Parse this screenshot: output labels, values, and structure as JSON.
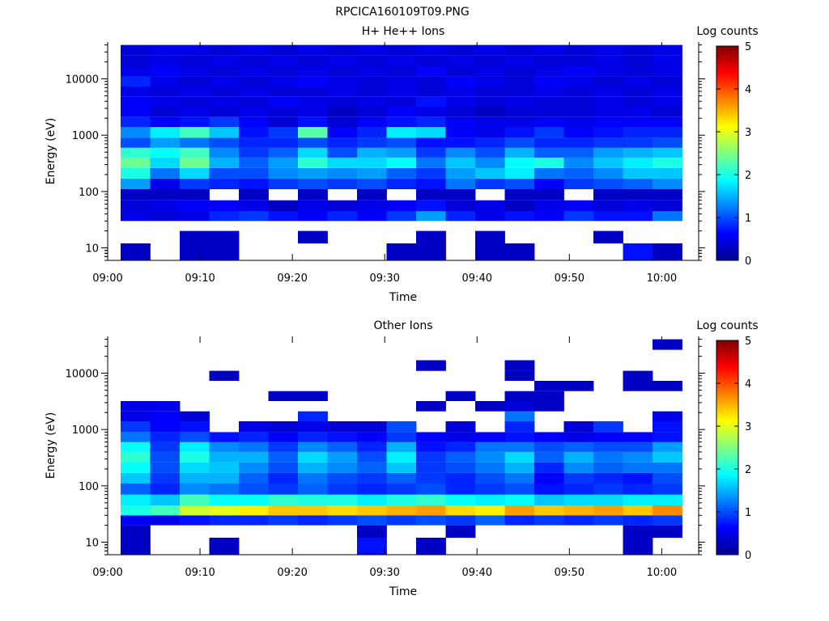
{
  "page_title": "RPCICA160109T09.PNG",
  "colormap": [
    "#00008f",
    "#0000ff",
    "#0080ff",
    "#00ffff",
    "#80ff80",
    "#ffff00",
    "#ff8000",
    "#ff0000",
    "#800000"
  ],
  "chart_data": [
    {
      "type": "heatmap",
      "title": "H+ He++ Ions",
      "xlabel": "Time",
      "ylabel": "Energy (eV)",
      "x_ticks": [
        "09:00",
        "09:10",
        "09:20",
        "09:30",
        "09:40",
        "09:50",
        "10:00"
      ],
      "x_range_min": [
        0,
        64
      ],
      "y_scale": "log",
      "y_range": [
        6,
        45000
      ],
      "y_ticks": [
        {
          "value": 10,
          "label": "10"
        },
        {
          "value": 100,
          "label": "100"
        },
        {
          "value": 1000,
          "label": "1000"
        },
        {
          "value": 10000,
          "label": "10000"
        }
      ],
      "colorbar": {
        "label": "Log counts",
        "min": 0,
        "max": 5,
        "ticks": [
          "0",
          "1",
          "2",
          "3",
          "4",
          "5"
        ]
      },
      "time_bins_start_min": [
        1.4,
        4.6,
        7.8,
        11.0,
        14.2,
        17.4,
        20.6,
        23.8,
        27.0,
        30.2,
        33.4,
        36.6,
        39.8,
        43.0,
        46.2,
        49.4,
        52.6,
        55.8,
        59.0
      ],
      "time_bin_width_min": 3.2,
      "energy_bands_eV": [
        {
          "lo": 6,
          "hi": 12
        },
        {
          "lo": 12,
          "hi": 20
        },
        {
          "lo": 20,
          "hi": 30
        },
        {
          "lo": 30,
          "hi": 45
        },
        {
          "lo": 45,
          "hi": 70
        },
        {
          "lo": 70,
          "hi": 110
        },
        {
          "lo": 110,
          "hi": 170
        },
        {
          "lo": 170,
          "hi": 260
        },
        {
          "lo": 260,
          "hi": 400
        },
        {
          "lo": 400,
          "hi": 600
        },
        {
          "lo": 600,
          "hi": 900
        },
        {
          "lo": 900,
          "hi": 1400
        },
        {
          "lo": 1400,
          "hi": 2100
        },
        {
          "lo": 2100,
          "hi": 3200
        },
        {
          "lo": 3200,
          "hi": 4800
        },
        {
          "lo": 4800,
          "hi": 7300
        },
        {
          "lo": 7300,
          "hi": 11000
        },
        {
          "lo": 11000,
          "hi": 17000
        },
        {
          "lo": 17000,
          "hi": 26000
        },
        {
          "lo": 26000,
          "hi": 40000
        }
      ],
      "log_counts_rows_low_to_high_energy": [
        [
          0.3,
          -1,
          0.3,
          0.3,
          -1,
          -1,
          -1,
          -1,
          -1,
          0.3,
          0.3,
          -1,
          0.3,
          0.3,
          -1,
          -1,
          -1,
          0.7,
          0.3
        ],
        [
          -1,
          -1,
          0.3,
          0.3,
          -1,
          -1,
          0.3,
          -1,
          -1,
          -1,
          0.3,
          -1,
          0.3,
          -1,
          -1,
          -1,
          0.3,
          -1,
          -1
        ],
        [
          -1,
          -1,
          -1,
          -1,
          -1,
          -1,
          -1,
          -1,
          -1,
          -1,
          -1,
          -1,
          -1,
          -1,
          -1,
          -1,
          -1,
          -1,
          -1
        ],
        [
          0.5,
          0.4,
          0.5,
          0.8,
          0.9,
          0.7,
          0.6,
          0.8,
          0.6,
          0.9,
          1.4,
          0.8,
          0.5,
          0.7,
          0.6,
          0.9,
          0.7,
          0.7,
          1.2
        ],
        [
          0.4,
          0.5,
          0.6,
          0.6,
          0.5,
          0.3,
          0.5,
          0.4,
          0.5,
          0.6,
          0.7,
          0.4,
          0.5,
          0.3,
          0.5,
          0.6,
          0.4,
          0.5,
          0.4
        ],
        [
          0.3,
          0.3,
          0.3,
          -1,
          0.3,
          -1,
          0.3,
          -1,
          0.3,
          -1,
          0.3,
          0.3,
          -1,
          0.3,
          0.3,
          -1,
          0.3,
          0.3,
          0.3
        ],
        [
          1.4,
          0.5,
          0.9,
          0.8,
          0.7,
          0.9,
          1.0,
          0.9,
          1.0,
          0.8,
          0.7,
          1.2,
          0.9,
          1.0,
          0.6,
          0.9,
          1.0,
          1.1,
          1.3
        ],
        [
          2.0,
          1.2,
          1.7,
          1.0,
          1.0,
          1.3,
          1.4,
          1.3,
          1.4,
          1.1,
          0.9,
          1.4,
          1.6,
          1.8,
          1.2,
          1.1,
          1.3,
          1.6,
          1.6
        ],
        [
          2.4,
          1.7,
          2.4,
          1.5,
          1.1,
          1.4,
          2.1,
          1.7,
          1.7,
          1.9,
          1.2,
          1.6,
          1.3,
          1.9,
          2.0,
          1.3,
          1.6,
          1.8,
          2.0
        ],
        [
          2.1,
          1.9,
          2.2,
          1.3,
          0.9,
          1.1,
          1.7,
          1.0,
          1.5,
          1.4,
          0.9,
          1.3,
          1.0,
          1.5,
          1.1,
          1.1,
          1.4,
          1.5,
          1.6
        ],
        [
          1.0,
          1.4,
          1.2,
          1.0,
          0.8,
          0.8,
          1.0,
          0.8,
          0.9,
          1.0,
          0.7,
          0.7,
          0.8,
          1.0,
          0.8,
          0.8,
          0.9,
          0.9,
          1.0
        ],
        [
          1.3,
          1.8,
          2.2,
          1.6,
          0.7,
          0.9,
          2.3,
          0.6,
          0.8,
          1.8,
          1.7,
          0.6,
          0.5,
          0.7,
          0.9,
          0.6,
          0.7,
          0.8,
          0.8
        ],
        [
          0.8,
          0.6,
          0.7,
          0.9,
          0.6,
          0.4,
          0.7,
          0.4,
          0.6,
          0.7,
          0.8,
          0.6,
          0.5,
          0.5,
          0.6,
          0.5,
          0.6,
          0.6,
          0.6
        ],
        [
          0.6,
          0.4,
          0.5,
          0.4,
          0.5,
          0.4,
          0.5,
          0.3,
          0.4,
          0.6,
          0.5,
          0.4,
          0.3,
          0.4,
          0.4,
          0.4,
          0.5,
          0.5,
          0.4
        ],
        [
          0.6,
          0.5,
          0.4,
          0.5,
          0.4,
          0.6,
          0.5,
          0.4,
          0.5,
          0.4,
          0.7,
          0.5,
          0.4,
          0.5,
          0.4,
          0.4,
          0.5,
          0.4,
          0.5
        ],
        [
          0.5,
          0.4,
          0.5,
          0.4,
          0.5,
          0.4,
          0.4,
          0.5,
          0.4,
          0.5,
          0.4,
          0.5,
          0.4,
          0.4,
          0.5,
          0.4,
          0.5,
          0.4,
          0.5
        ],
        [
          0.8,
          0.5,
          0.4,
          0.5,
          0.4,
          0.5,
          0.6,
          0.5,
          0.4,
          0.5,
          0.4,
          0.6,
          0.5,
          0.4,
          0.6,
          0.5,
          0.4,
          0.5,
          0.4
        ],
        [
          0.5,
          0.6,
          0.5,
          0.4,
          0.5,
          0.4,
          0.5,
          0.4,
          0.5,
          0.4,
          0.6,
          0.4,
          0.5,
          0.4,
          0.5,
          0.6,
          0.5,
          0.4,
          0.5
        ],
        [
          0.4,
          0.5,
          0.4,
          0.5,
          0.4,
          0.5,
          0.4,
          0.5,
          0.4,
          0.5,
          0.4,
          0.5,
          0.4,
          0.5,
          0.4,
          0.4,
          0.5,
          0.4,
          0.5
        ],
        [
          0.4,
          0.5,
          0.5,
          0.4,
          0.5,
          0.4,
          0.5,
          0.4,
          0.5,
          0.4,
          0.5,
          0.4,
          0.5,
          0.4,
          0.5,
          0.4,
          0.5,
          0.4,
          0.5
        ]
      ]
    },
    {
      "type": "heatmap",
      "title": "Other Ions",
      "xlabel": "Time",
      "ylabel": "Energy (eV)",
      "x_ticks": [
        "09:00",
        "09:10",
        "09:20",
        "09:30",
        "09:40",
        "09:50",
        "10:00"
      ],
      "x_range_min": [
        0,
        64
      ],
      "y_scale": "log",
      "y_range": [
        6,
        45000
      ],
      "y_ticks": [
        {
          "value": 10,
          "label": "10"
        },
        {
          "value": 100,
          "label": "100"
        },
        {
          "value": 1000,
          "label": "1000"
        },
        {
          "value": 10000,
          "label": "10000"
        }
      ],
      "colorbar": {
        "label": "Log counts",
        "min": 0,
        "max": 5,
        "ticks": [
          "0",
          "1",
          "2",
          "3",
          "4",
          "5"
        ]
      },
      "time_bins_start_min": [
        1.4,
        4.6,
        7.8,
        11.0,
        14.2,
        17.4,
        20.6,
        23.8,
        27.0,
        30.2,
        33.4,
        36.6,
        39.8,
        43.0,
        46.2,
        49.4,
        52.6,
        55.8,
        59.0
      ],
      "time_bin_width_min": 3.2,
      "energy_bands_eV": [
        {
          "lo": 6,
          "hi": 12
        },
        {
          "lo": 12,
          "hi": 20
        },
        {
          "lo": 20,
          "hi": 30
        },
        {
          "lo": 30,
          "hi": 45
        },
        {
          "lo": 45,
          "hi": 70
        },
        {
          "lo": 70,
          "hi": 110
        },
        {
          "lo": 110,
          "hi": 170
        },
        {
          "lo": 170,
          "hi": 260
        },
        {
          "lo": 260,
          "hi": 400
        },
        {
          "lo": 400,
          "hi": 600
        },
        {
          "lo": 600,
          "hi": 900
        },
        {
          "lo": 900,
          "hi": 1400
        },
        {
          "lo": 1400,
          "hi": 2100
        },
        {
          "lo": 2100,
          "hi": 3200
        },
        {
          "lo": 3200,
          "hi": 4800
        },
        {
          "lo": 4800,
          "hi": 7300
        },
        {
          "lo": 7300,
          "hi": 11000
        },
        {
          "lo": 11000,
          "hi": 17000
        },
        {
          "lo": 17000,
          "hi": 26000
        },
        {
          "lo": 26000,
          "hi": 40000
        }
      ],
      "log_counts_rows_low_to_high_energy": [
        [
          0.3,
          -1,
          -1,
          0.3,
          -1,
          -1,
          -1,
          -1,
          0.7,
          -1,
          0.3,
          -1,
          -1,
          -1,
          -1,
          -1,
          -1,
          0.3,
          -1
        ],
        [
          0.3,
          -1,
          -1,
          -1,
          -1,
          -1,
          -1,
          -1,
          0.3,
          -1,
          -1,
          0.3,
          -1,
          -1,
          -1,
          -1,
          -1,
          0.3,
          0.3
        ],
        [
          0.6,
          0.5,
          0.7,
          0.8,
          0.8,
          0.9,
          0.8,
          0.9,
          1.0,
          0.9,
          1.0,
          0.9,
          1.1,
          0.8,
          0.9,
          0.8,
          0.9,
          0.8,
          0.9
        ],
        [
          2.0,
          2.2,
          2.9,
          3.0,
          3.2,
          3.4,
          3.4,
          3.3,
          3.4,
          3.5,
          3.6,
          3.3,
          3.2,
          3.6,
          3.4,
          3.5,
          3.6,
          3.4,
          3.7
        ],
        [
          1.8,
          1.6,
          2.2,
          1.9,
          1.9,
          2.1,
          2.0,
          2.0,
          1.8,
          2.0,
          2.1,
          1.9,
          1.8,
          1.9,
          1.6,
          1.7,
          1.7,
          1.8,
          1.8
        ],
        [
          1.1,
          0.8,
          1.3,
          1.2,
          1.0,
          0.9,
          1.1,
          0.9,
          0.8,
          0.9,
          1.0,
          0.8,
          0.9,
          1.0,
          0.7,
          0.8,
          0.9,
          0.8,
          0.9
        ],
        [
          1.6,
          0.9,
          1.5,
          1.5,
          1.1,
          0.8,
          1.2,
          1.0,
          0.9,
          1.1,
          0.9,
          0.8,
          1.0,
          1.2,
          0.6,
          0.9,
          0.8,
          0.7,
          1.0
        ],
        [
          1.9,
          1.0,
          1.7,
          1.6,
          1.3,
          1.0,
          1.5,
          1.3,
          1.1,
          1.6,
          0.9,
          1.0,
          1.2,
          1.5,
          0.8,
          1.3,
          1.1,
          1.2,
          1.2
        ],
        [
          2.1,
          1.0,
          2.0,
          1.5,
          1.5,
          1.1,
          1.7,
          1.4,
          1.0,
          1.8,
          0.9,
          1.1,
          1.3,
          1.7,
          1.1,
          1.5,
          1.2,
          1.3,
          1.6
        ],
        [
          1.9,
          0.9,
          1.8,
          1.3,
          1.2,
          0.9,
          1.3,
          1.1,
          0.8,
          1.5,
          0.7,
          0.8,
          1.2,
          1.2,
          1.0,
          1.1,
          1.0,
          1.0,
          1.4
        ],
        [
          1.2,
          0.8,
          1.0,
          0.7,
          0.8,
          0.6,
          0.8,
          0.7,
          0.6,
          0.9,
          0.6,
          0.5,
          0.6,
          0.7,
          0.6,
          0.5,
          0.6,
          0.6,
          0.7
        ],
        [
          0.9,
          0.6,
          0.7,
          -1,
          0.5,
          0.4,
          0.5,
          0.4,
          0.4,
          1.0,
          -1,
          0.4,
          -1,
          0.8,
          -1,
          0.4,
          0.9,
          -1,
          0.7
        ],
        [
          0.5,
          0.6,
          0.4,
          -1,
          -1,
          -1,
          0.8,
          -1,
          -1,
          -1,
          -1,
          -1,
          -1,
          1.2,
          -1,
          -1,
          -1,
          -1,
          0.5
        ],
        [
          0.5,
          0.5,
          -1,
          -1,
          -1,
          -1,
          -1,
          -1,
          -1,
          -1,
          0.3,
          -1,
          0.3,
          0.4,
          0.3,
          -1,
          -1,
          -1,
          -1
        ],
        [
          -1,
          -1,
          -1,
          -1,
          -1,
          0.3,
          0.3,
          -1,
          -1,
          -1,
          -1,
          0.3,
          -1,
          0.3,
          0.3,
          -1,
          -1,
          -1,
          -1
        ],
        [
          -1,
          -1,
          -1,
          -1,
          -1,
          -1,
          -1,
          -1,
          -1,
          -1,
          -1,
          -1,
          -1,
          -1,
          0.3,
          0.3,
          -1,
          0.3,
          0.3
        ],
        [
          -1,
          -1,
          -1,
          0.3,
          -1,
          -1,
          -1,
          -1,
          -1,
          -1,
          -1,
          -1,
          -1,
          0.3,
          -1,
          -1,
          -1,
          0.3,
          -1
        ],
        [
          -1,
          -1,
          -1,
          -1,
          -1,
          -1,
          -1,
          -1,
          -1,
          -1,
          0.3,
          -1,
          -1,
          0.3,
          -1,
          -1,
          -1,
          -1,
          -1
        ],
        [
          -1,
          -1,
          -1,
          -1,
          -1,
          -1,
          -1,
          -1,
          -1,
          -1,
          -1,
          -1,
          -1,
          -1,
          -1,
          -1,
          -1,
          -1,
          -1
        ],
        [
          -1,
          -1,
          -1,
          -1,
          -1,
          -1,
          -1,
          -1,
          -1,
          -1,
          -1,
          -1,
          -1,
          -1,
          -1,
          -1,
          -1,
          -1,
          0.3
        ]
      ]
    }
  ]
}
